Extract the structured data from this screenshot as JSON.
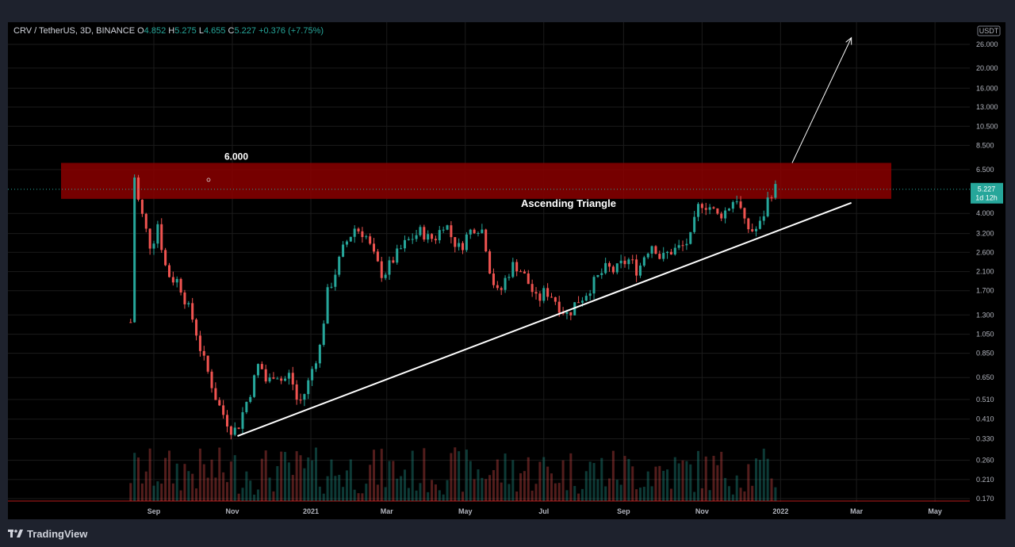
{
  "legend": {
    "symbol": "CRV / TetherUS, 3D, BINANCE",
    "o_label": "O",
    "o": "4.852",
    "h_label": "H",
    "h": "5.275",
    "l_label": "L",
    "l": "4.655",
    "c_label": "C",
    "c": "5.227",
    "change": "+0.376 (+7.75%)"
  },
  "footer": {
    "brand": "TradingView",
    "logo_icon": "tradingview-logo-icon"
  },
  "price_axis": {
    "currency": "USDT",
    "last_price": "5.227",
    "countdown": "1d 12h",
    "last_price_color": "#26a69a"
  },
  "chart_data": {
    "type": "candlestick",
    "title": "",
    "scale": "log",
    "y_ticks": [
      26.0,
      20.0,
      16.0,
      13.0,
      10.5,
      8.5,
      6.5,
      5.227,
      4.0,
      3.2,
      2.6,
      2.1,
      1.7,
      1.3,
      1.05,
      0.85,
      0.65,
      0.51,
      0.41,
      0.33,
      0.26,
      0.21,
      0.17
    ],
    "y_tick_labels": [
      "26.000",
      "20.000",
      "16.000",
      "13.000",
      "10.500",
      "8.500",
      "6.500",
      "",
      "4.000",
      "3.200",
      "2.600",
      "2.100",
      "1.700",
      "1.300",
      "1.050",
      "0.850",
      "0.650",
      "0.510",
      "0.410",
      "0.330",
      "0.260",
      "0.210",
      "0.170"
    ],
    "x_ticks": [
      "Sep",
      "Nov",
      "2021",
      "Mar",
      "May",
      "Jul",
      "Sep",
      "Nov",
      "2022",
      "Mar",
      "May"
    ],
    "start_date": "2020-08-14",
    "resistance_zone": {
      "low": 4.7,
      "high": 7.0,
      "label": "6.000",
      "color": "#8b0000"
    },
    "support_line": {
      "from": [
        "2020-11-05",
        0.34
      ],
      "to": [
        "2022-02-25",
        4.5
      ]
    },
    "projection_arrow": {
      "from": [
        "2022-01-10",
        7.0
      ],
      "to": [
        "2022-02-25",
        28.0
      ]
    },
    "pattern_label": "Ascending Triangle",
    "colors": {
      "up": "#26a69a",
      "down": "#ef5350",
      "grid": "#1b1b1b",
      "overlay": "#ffffff"
    },
    "series": [
      {
        "name": "",
        "anchors": [
          [
            "2020-08-14",
            1.2
          ],
          [
            "2020-08-17",
            6.0
          ],
          [
            "2020-08-20",
            4.6
          ],
          [
            "2020-08-26",
            3.3
          ],
          [
            "2020-08-30",
            2.7
          ],
          [
            "2020-09-05",
            3.8
          ],
          [
            "2020-09-08",
            2.4
          ],
          [
            "2020-09-14",
            1.95
          ],
          [
            "2020-09-20",
            1.9
          ],
          [
            "2020-09-26",
            1.5
          ],
          [
            "2020-10-02",
            1.2
          ],
          [
            "2020-10-08",
            0.85
          ],
          [
            "2020-10-14",
            0.66
          ],
          [
            "2020-10-20",
            0.5
          ],
          [
            "2020-10-26",
            0.42
          ],
          [
            "2020-11-01",
            0.36
          ],
          [
            "2020-11-05",
            0.37
          ],
          [
            "2020-11-10",
            0.46
          ],
          [
            "2020-11-16",
            0.58
          ],
          [
            "2020-11-22",
            0.78
          ],
          [
            "2020-11-28",
            0.6
          ],
          [
            "2020-12-04",
            0.7
          ],
          [
            "2020-12-10",
            0.62
          ],
          [
            "2020-12-16",
            0.68
          ],
          [
            "2020-12-22",
            0.48
          ],
          [
            "2020-12-28",
            0.56
          ],
          [
            "2021-01-03",
            0.75
          ],
          [
            "2021-01-09",
            0.95
          ],
          [
            "2021-01-13",
            1.6
          ],
          [
            "2021-01-19",
            2.0
          ],
          [
            "2021-01-27",
            2.8
          ],
          [
            "2021-02-04",
            3.4
          ],
          [
            "2021-02-12",
            3.2
          ],
          [
            "2021-02-20",
            2.4
          ],
          [
            "2021-02-26",
            2.0
          ],
          [
            "2021-03-04",
            2.3
          ],
          [
            "2021-03-10",
            2.6
          ],
          [
            "2021-03-16",
            2.9
          ],
          [
            "2021-03-22",
            3.1
          ],
          [
            "2021-03-28",
            3.3
          ],
          [
            "2021-04-03",
            3.0
          ],
          [
            "2021-04-09",
            3.1
          ],
          [
            "2021-04-15",
            3.7
          ],
          [
            "2021-04-21",
            3.0
          ],
          [
            "2021-04-27",
            2.7
          ],
          [
            "2021-05-03",
            3.2
          ],
          [
            "2021-05-09",
            3.5
          ],
          [
            "2021-05-15",
            3.3
          ],
          [
            "2021-05-21",
            2.0
          ],
          [
            "2021-05-27",
            1.6
          ],
          [
            "2021-06-02",
            2.0
          ],
          [
            "2021-06-08",
            2.3
          ],
          [
            "2021-06-14",
            2.1
          ],
          [
            "2021-06-20",
            1.8
          ],
          [
            "2021-06-26",
            1.5
          ],
          [
            "2021-07-02",
            1.7
          ],
          [
            "2021-07-08",
            1.6
          ],
          [
            "2021-07-14",
            1.4
          ],
          [
            "2021-07-20",
            1.3
          ],
          [
            "2021-07-26",
            1.5
          ],
          [
            "2021-08-01",
            1.6
          ],
          [
            "2021-08-07",
            1.8
          ],
          [
            "2021-08-13",
            2.0
          ],
          [
            "2021-08-19",
            2.2
          ],
          [
            "2021-08-25",
            2.1
          ],
          [
            "2021-08-31",
            2.3
          ],
          [
            "2021-09-06",
            2.4
          ],
          [
            "2021-09-12",
            2.1
          ],
          [
            "2021-09-18",
            2.6
          ],
          [
            "2021-09-24",
            2.9
          ],
          [
            "2021-09-30",
            2.4
          ],
          [
            "2021-10-06",
            2.6
          ],
          [
            "2021-10-12",
            2.7
          ],
          [
            "2021-10-18",
            2.8
          ],
          [
            "2021-10-24",
            3.1
          ],
          [
            "2021-10-28",
            4.2
          ],
          [
            "2021-11-01",
            4.5
          ],
          [
            "2021-11-07",
            4.3
          ],
          [
            "2021-11-13",
            3.9
          ],
          [
            "2021-11-19",
            4.1
          ],
          [
            "2021-11-25",
            4.6
          ],
          [
            "2021-11-29",
            4.8
          ],
          [
            "2021-12-03",
            3.6
          ],
          [
            "2021-12-09",
            3.3
          ],
          [
            "2021-12-15",
            3.4
          ],
          [
            "2021-12-19",
            4.0
          ],
          [
            "2021-12-23",
            4.9
          ],
          [
            "2021-12-27",
            5.3
          ],
          [
            "2021-12-30",
            5.227
          ]
        ]
      }
    ]
  }
}
